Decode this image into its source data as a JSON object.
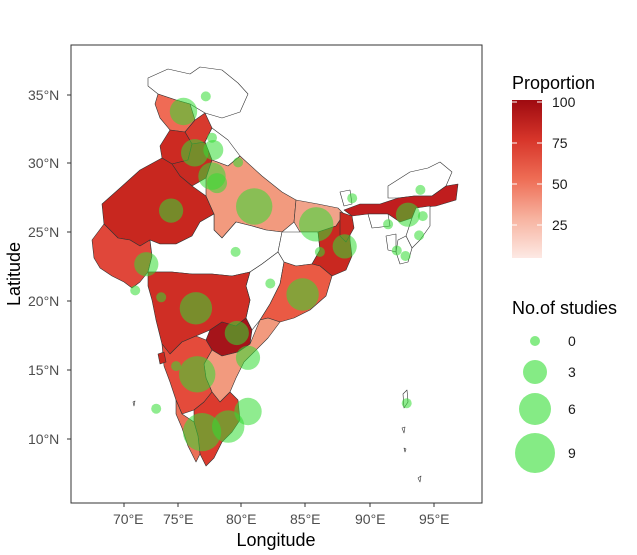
{
  "chart_data": {
    "type": "map",
    "xlabel": "Longitude",
    "ylabel": "Latitude",
    "x_ticks": [
      "70°E",
      "75°E",
      "80°E",
      "85°E",
      "90°E",
      "95°E"
    ],
    "y_ticks": [
      "35°N",
      "30°N",
      "25°N",
      "20°N",
      "15°N",
      "10°N"
    ],
    "xlim": [
      66.5,
      99
    ],
    "ylim": [
      5,
      39.5
    ],
    "fill_legend": {
      "title": "Proportion",
      "ticks": [
        "100",
        "75",
        "50",
        "25"
      ],
      "range": [
        0,
        100
      ],
      "low_color": "#fde9e4",
      "high_color": "#9e0a10"
    },
    "size_legend": {
      "title": "No.of studies",
      "values": [
        "0",
        "3",
        "6",
        "9"
      ]
    },
    "bubble_color": "#33dd33",
    "studies": [
      {
        "lon": 74.8,
        "lat": 33.8,
        "n": 3
      },
      {
        "lon": 76.6,
        "lat": 34.9,
        "n": 0
      },
      {
        "lon": 75.7,
        "lat": 30.8,
        "n": 3
      },
      {
        "lon": 77.1,
        "lat": 31.9,
        "n": 0
      },
      {
        "lon": 77.2,
        "lat": 31.0,
        "n": 1
      },
      {
        "lon": 77.1,
        "lat": 29.1,
        "n": 3
      },
      {
        "lon": 77.5,
        "lat": 28.6,
        "n": 1
      },
      {
        "lon": 79.2,
        "lat": 30.1,
        "n": 0
      },
      {
        "lon": 73.8,
        "lat": 26.6,
        "n": 2
      },
      {
        "lon": 80.5,
        "lat": 26.9,
        "n": 7
      },
      {
        "lon": 85.5,
        "lat": 25.6,
        "n": 6
      },
      {
        "lon": 85.8,
        "lat": 23.6,
        "n": 0
      },
      {
        "lon": 88.4,
        "lat": 27.5,
        "n": 0
      },
      {
        "lon": 87.8,
        "lat": 24.0,
        "n": 2
      },
      {
        "lon": 92.9,
        "lat": 26.3,
        "n": 2
      },
      {
        "lon": 93.9,
        "lat": 28.1,
        "n": 0
      },
      {
        "lon": 94.1,
        "lat": 26.2,
        "n": 0
      },
      {
        "lon": 91.3,
        "lat": 25.6,
        "n": 0
      },
      {
        "lon": 93.8,
        "lat": 24.8,
        "n": 0
      },
      {
        "lon": 92.0,
        "lat": 23.7,
        "n": 0
      },
      {
        "lon": 92.7,
        "lat": 23.3,
        "n": 0
      },
      {
        "lon": 71.8,
        "lat": 22.7,
        "n": 2
      },
      {
        "lon": 79.0,
        "lat": 23.6,
        "n": 0
      },
      {
        "lon": 81.8,
        "lat": 21.3,
        "n": 0
      },
      {
        "lon": 84.4,
        "lat": 20.5,
        "n": 5
      },
      {
        "lon": 70.9,
        "lat": 20.8,
        "n": 0
      },
      {
        "lon": 73.0,
        "lat": 20.3,
        "n": 0
      },
      {
        "lon": 75.8,
        "lat": 19.5,
        "n": 5
      },
      {
        "lon": 79.1,
        "lat": 17.7,
        "n": 2
      },
      {
        "lon": 80.0,
        "lat": 15.9,
        "n": 2
      },
      {
        "lon": 74.2,
        "lat": 15.3,
        "n": 0
      },
      {
        "lon": 75.9,
        "lat": 14.7,
        "n": 7
      },
      {
        "lon": 80.0,
        "lat": 12.0,
        "n": 3
      },
      {
        "lon": 76.3,
        "lat": 10.5,
        "n": 8
      },
      {
        "lon": 78.4,
        "lat": 10.9,
        "n": 5
      },
      {
        "lon": 72.6,
        "lat": 12.2,
        "n": 0
      },
      {
        "lon": 92.8,
        "lat": 12.6,
        "n": 0
      }
    ]
  }
}
